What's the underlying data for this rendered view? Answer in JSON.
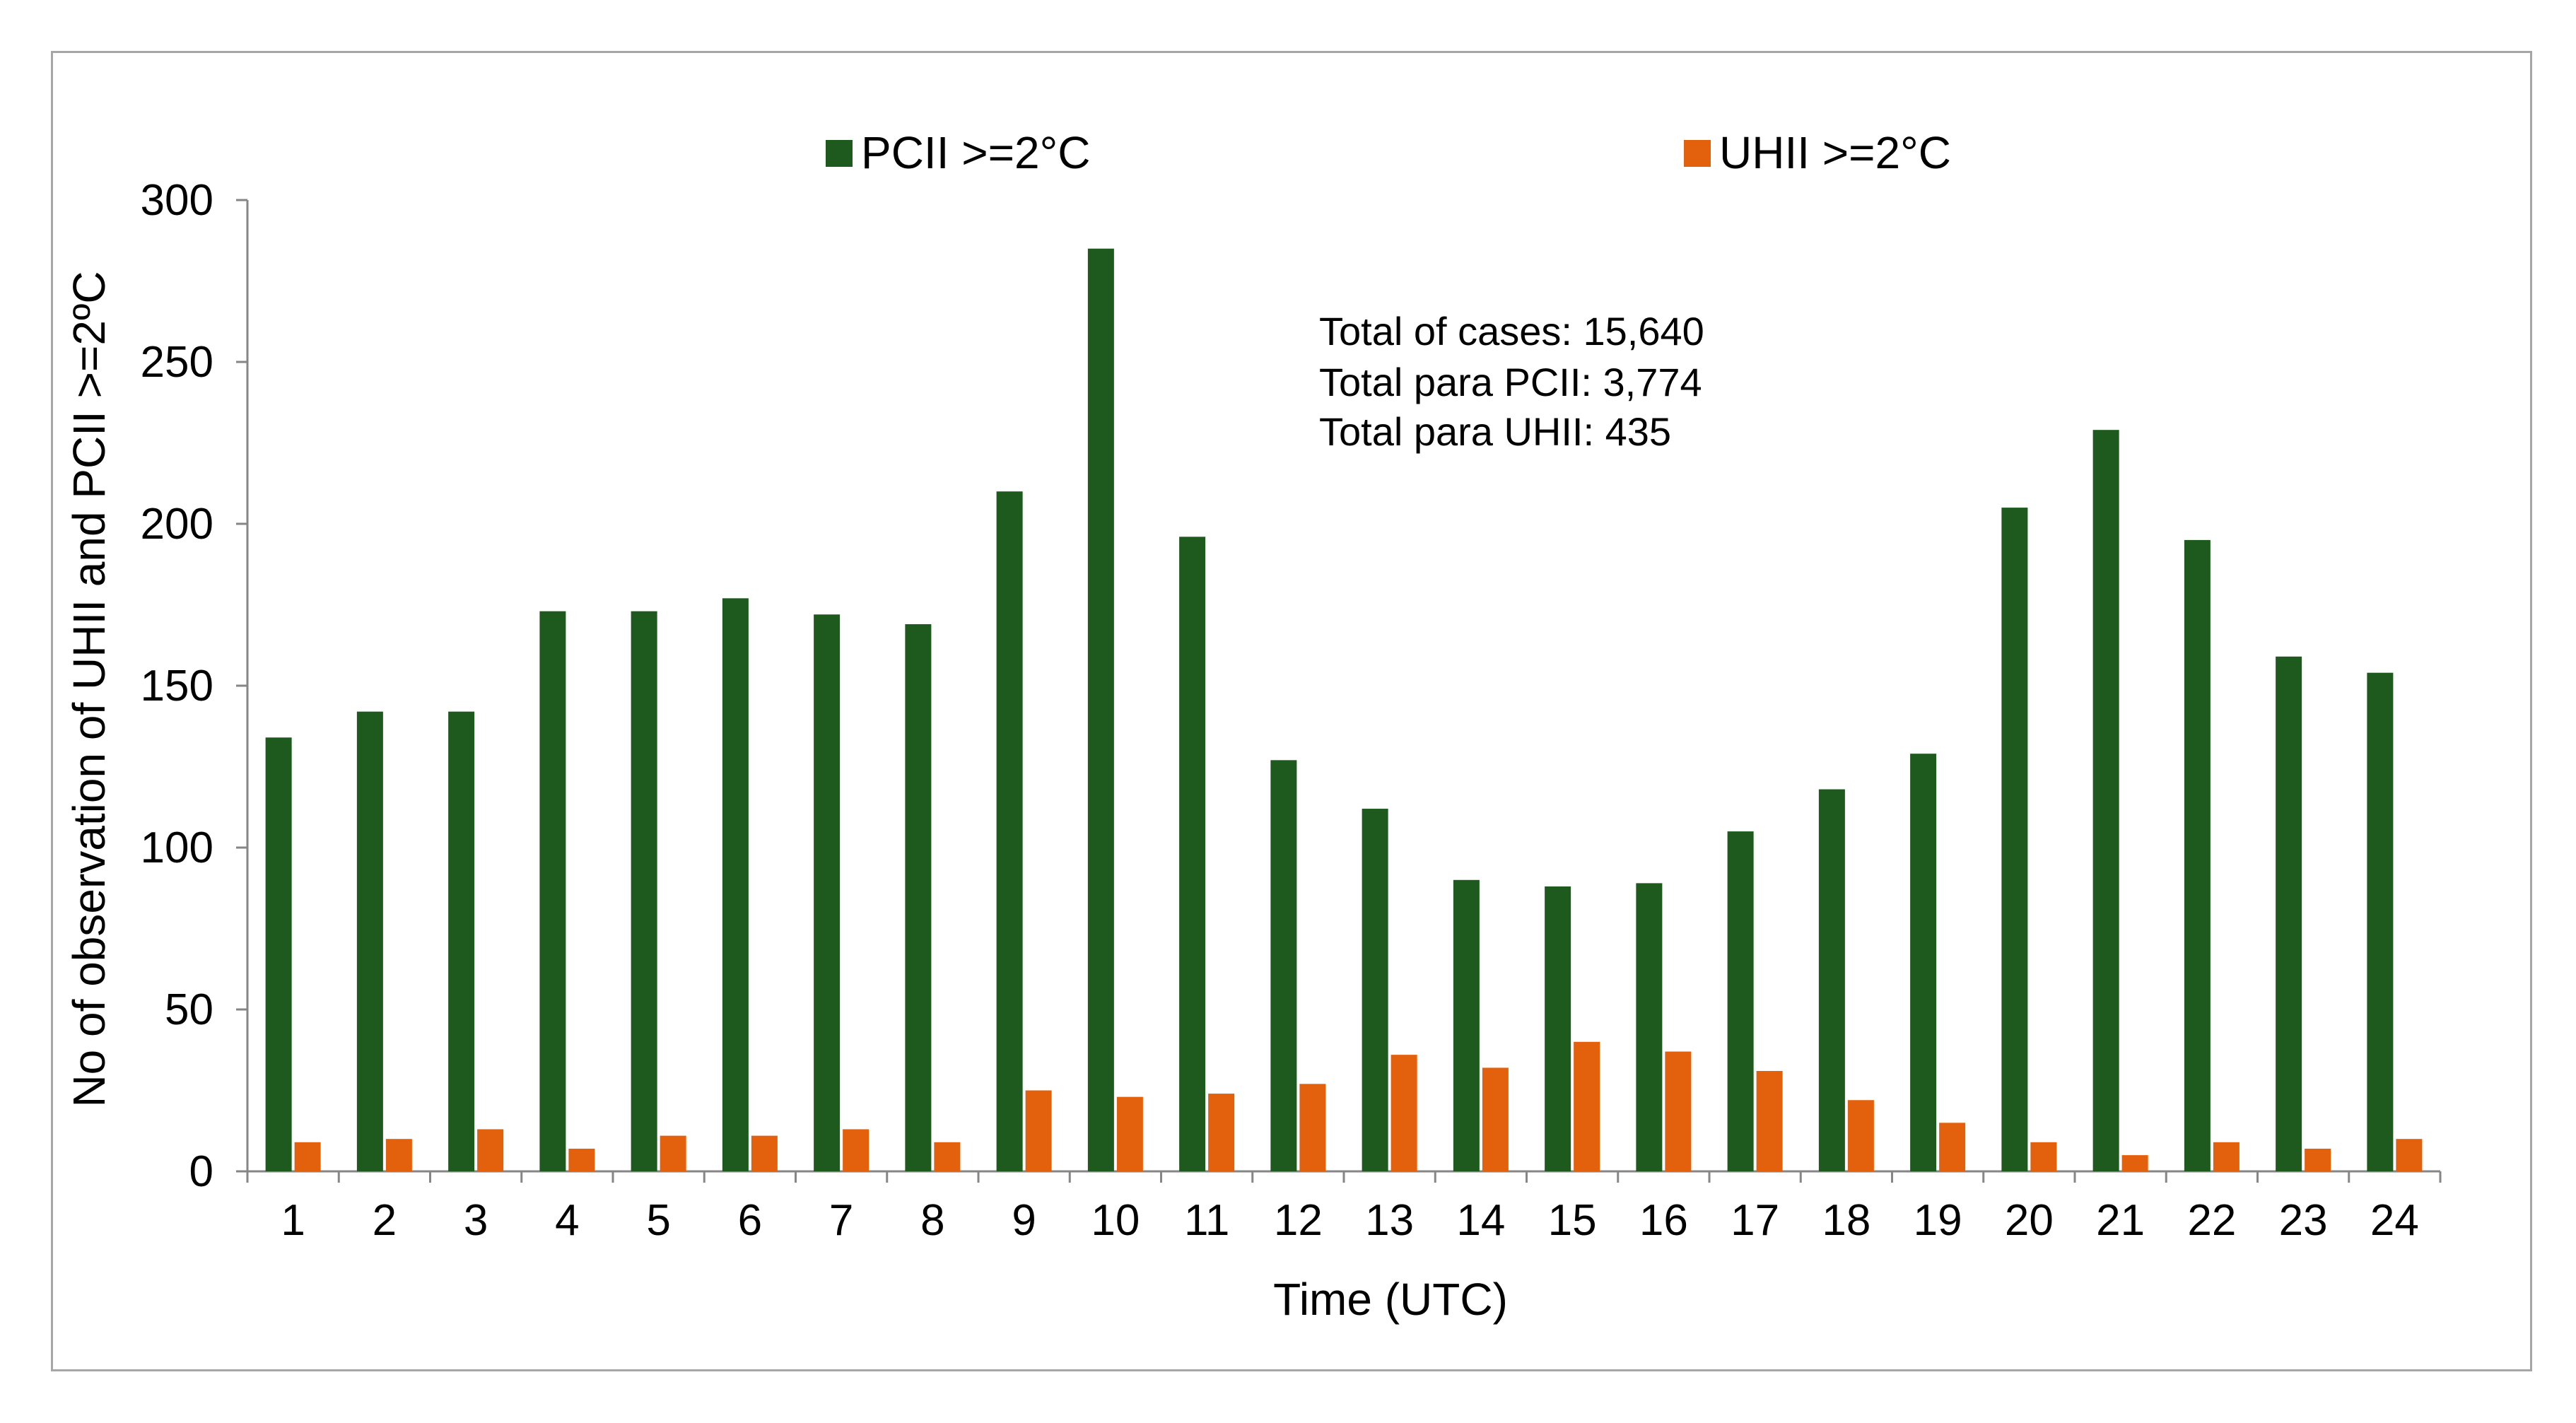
{
  "chart_data": {
    "type": "bar",
    "title": "",
    "xlabel": "Time (UTC)",
    "ylabel": "No of observation of UHII and PCII >=2ºC",
    "ylim": [
      0,
      300
    ],
    "yticks": [
      0,
      50,
      100,
      150,
      200,
      250,
      300
    ],
    "grid": false,
    "legend_position": "top",
    "categories": [
      "1",
      "2",
      "3",
      "4",
      "5",
      "6",
      "7",
      "8",
      "9",
      "10",
      "11",
      "12",
      "13",
      "14",
      "15",
      "16",
      "17",
      "18",
      "19",
      "20",
      "21",
      "22",
      "23",
      "24"
    ],
    "series": [
      {
        "name": "PCII >=2°C",
        "color": "#1e5a1e",
        "values": [
          134,
          142,
          142,
          173,
          173,
          177,
          172,
          169,
          210,
          285,
          196,
          127,
          112,
          90,
          88,
          89,
          105,
          118,
          129,
          205,
          229,
          195,
          159,
          154
        ]
      },
      {
        "name": "UHII >=2°C",
        "color": "#e3600c",
        "values": [
          9,
          10,
          13,
          7,
          11,
          11,
          13,
          9,
          25,
          23,
          24,
          27,
          36,
          32,
          40,
          37,
          31,
          22,
          15,
          9,
          5,
          9,
          7,
          10
        ]
      }
    ],
    "annotations": [
      "Total of cases: 15,640",
      "Total para PCII: 3,774",
      "Total para UHII: 435"
    ]
  }
}
